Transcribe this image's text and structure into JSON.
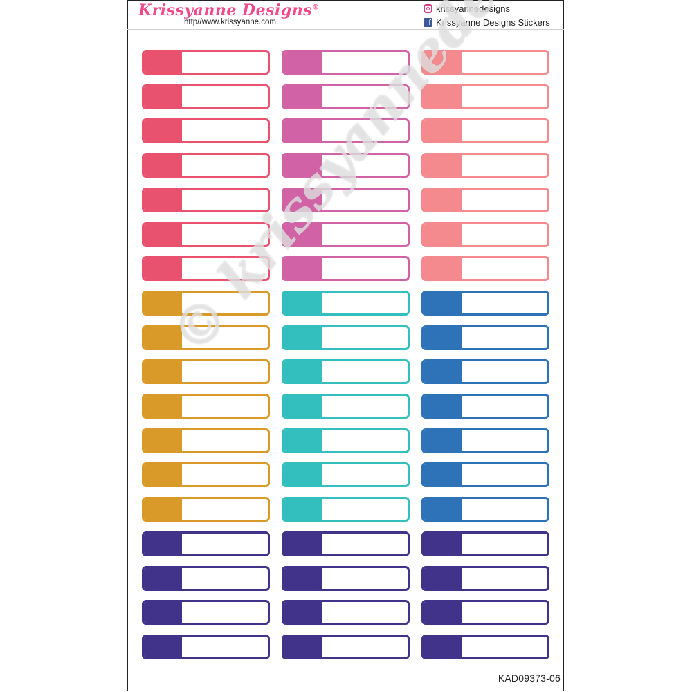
{
  "header": {
    "brand": "Krissyanne Designs",
    "brand_mark": "®",
    "website": "http//www.krissyanne.com",
    "instagram": "krissyannedesigns",
    "facebook": "Krissyanne Designs Stickers",
    "instagram_icon": "instagram-icon",
    "facebook_icon": "facebook-icon"
  },
  "watermark": "© krissyannedesigns",
  "product_code": "KAD09373-06",
  "colors": {
    "pink_red": "#e8526f",
    "magenta": "#d162a6",
    "salmon": "#f48a8e",
    "mustard": "#da9a2a",
    "teal": "#33bfbd",
    "blue": "#2e72b8",
    "purple": "#41338a"
  },
  "columns": [
    [
      "pink_red",
      "pink_red",
      "pink_red",
      "pink_red",
      "pink_red",
      "pink_red",
      "pink_red",
      "mustard",
      "mustard",
      "mustard",
      "mustard",
      "mustard",
      "mustard",
      "mustard",
      "purple",
      "purple",
      "purple",
      "purple"
    ],
    [
      "magenta",
      "magenta",
      "magenta",
      "magenta",
      "magenta",
      "magenta",
      "magenta",
      "teal",
      "teal",
      "teal",
      "teal",
      "teal",
      "teal",
      "teal",
      "purple",
      "purple",
      "purple",
      "purple"
    ],
    [
      "salmon",
      "salmon",
      "salmon",
      "salmon",
      "salmon",
      "salmon",
      "salmon",
      "blue",
      "blue",
      "blue",
      "blue",
      "blue",
      "blue",
      "blue",
      "purple",
      "purple",
      "purple",
      "purple"
    ]
  ]
}
